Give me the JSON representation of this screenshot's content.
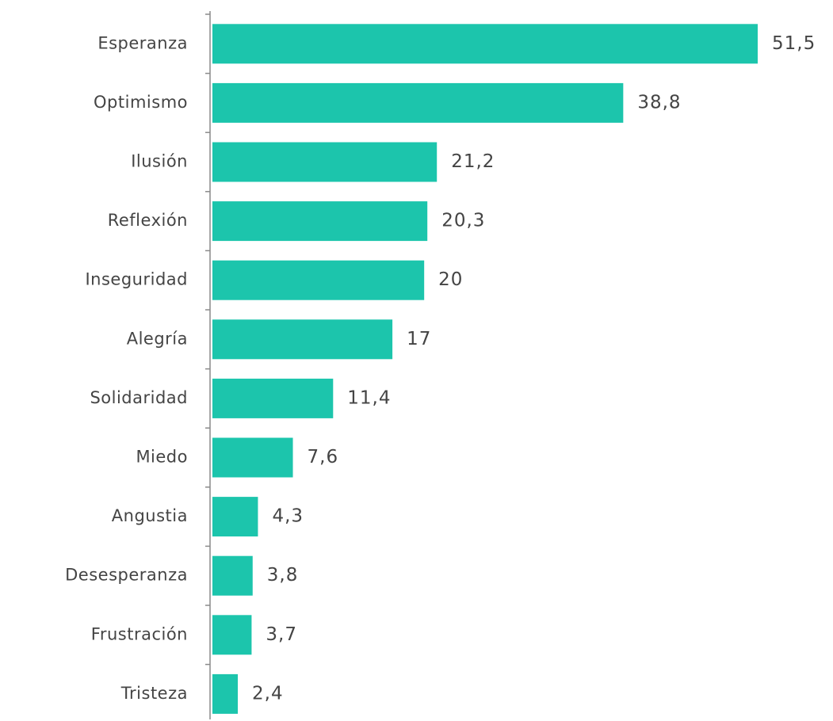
{
  "chart_data": {
    "type": "bar",
    "orientation": "horizontal",
    "categories": [
      "Esperanza",
      "Optimismo",
      "Ilusión",
      "Reflexión",
      "Inseguridad",
      "Alegría",
      "Solidaridad",
      "Miedo",
      "Angustia",
      "Desesperanza",
      "Frustración",
      "Tristeza"
    ],
    "values": [
      51.5,
      38.8,
      21.2,
      20.3,
      20,
      17,
      11.4,
      7.6,
      4.3,
      3.8,
      3.7,
      2.4
    ],
    "value_labels": [
      "51,5",
      "38,8",
      "21,2",
      "20,3",
      "20",
      "17",
      "11,4",
      "7,6",
      "4,3",
      "3,8",
      "3,7",
      "2,4"
    ],
    "title": "",
    "xlabel": "",
    "ylabel": "",
    "xlim": [
      0,
      51.5
    ],
    "grid": false,
    "legend": "none",
    "bar_color": "#1cc5ac",
    "text_color": "#444444",
    "axis_color": "#8a8a8a"
  }
}
